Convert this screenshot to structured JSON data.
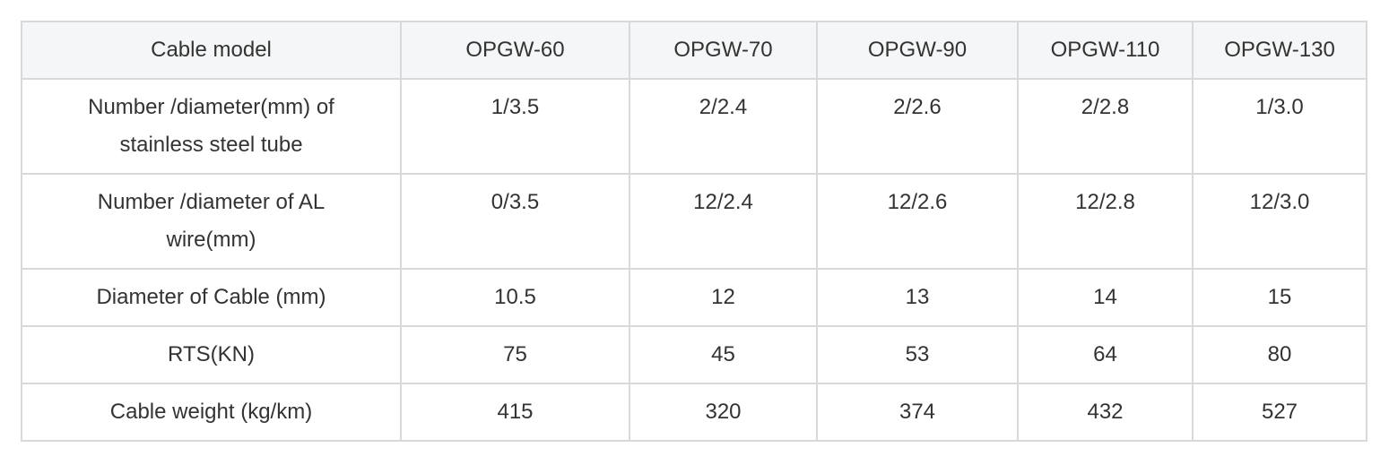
{
  "table": {
    "header": [
      "Cable model",
      "OPGW-60",
      "OPGW-70",
      "OPGW-90",
      "OPGW-110",
      "OPGW-130"
    ],
    "rows": [
      [
        "Number /diameter(mm) of stainless steel tube",
        "1/3.5",
        "2/2.4",
        "2/2.6",
        "2/2.8",
        "1/3.0"
      ],
      [
        "Number /diameter of AL wire(mm)",
        "0/3.5",
        "12/2.4",
        "12/2.6",
        "12/2.8",
        "12/3.0"
      ],
      [
        "Diameter of Cable (mm)",
        "10.5",
        "12",
        "13",
        "14",
        "15"
      ],
      [
        "RTS(KN)",
        "75",
        "45",
        "53",
        "64",
        "80"
      ],
      [
        "Cable weight (kg/km)",
        "415",
        "320",
        "374",
        "432",
        "527"
      ]
    ]
  }
}
